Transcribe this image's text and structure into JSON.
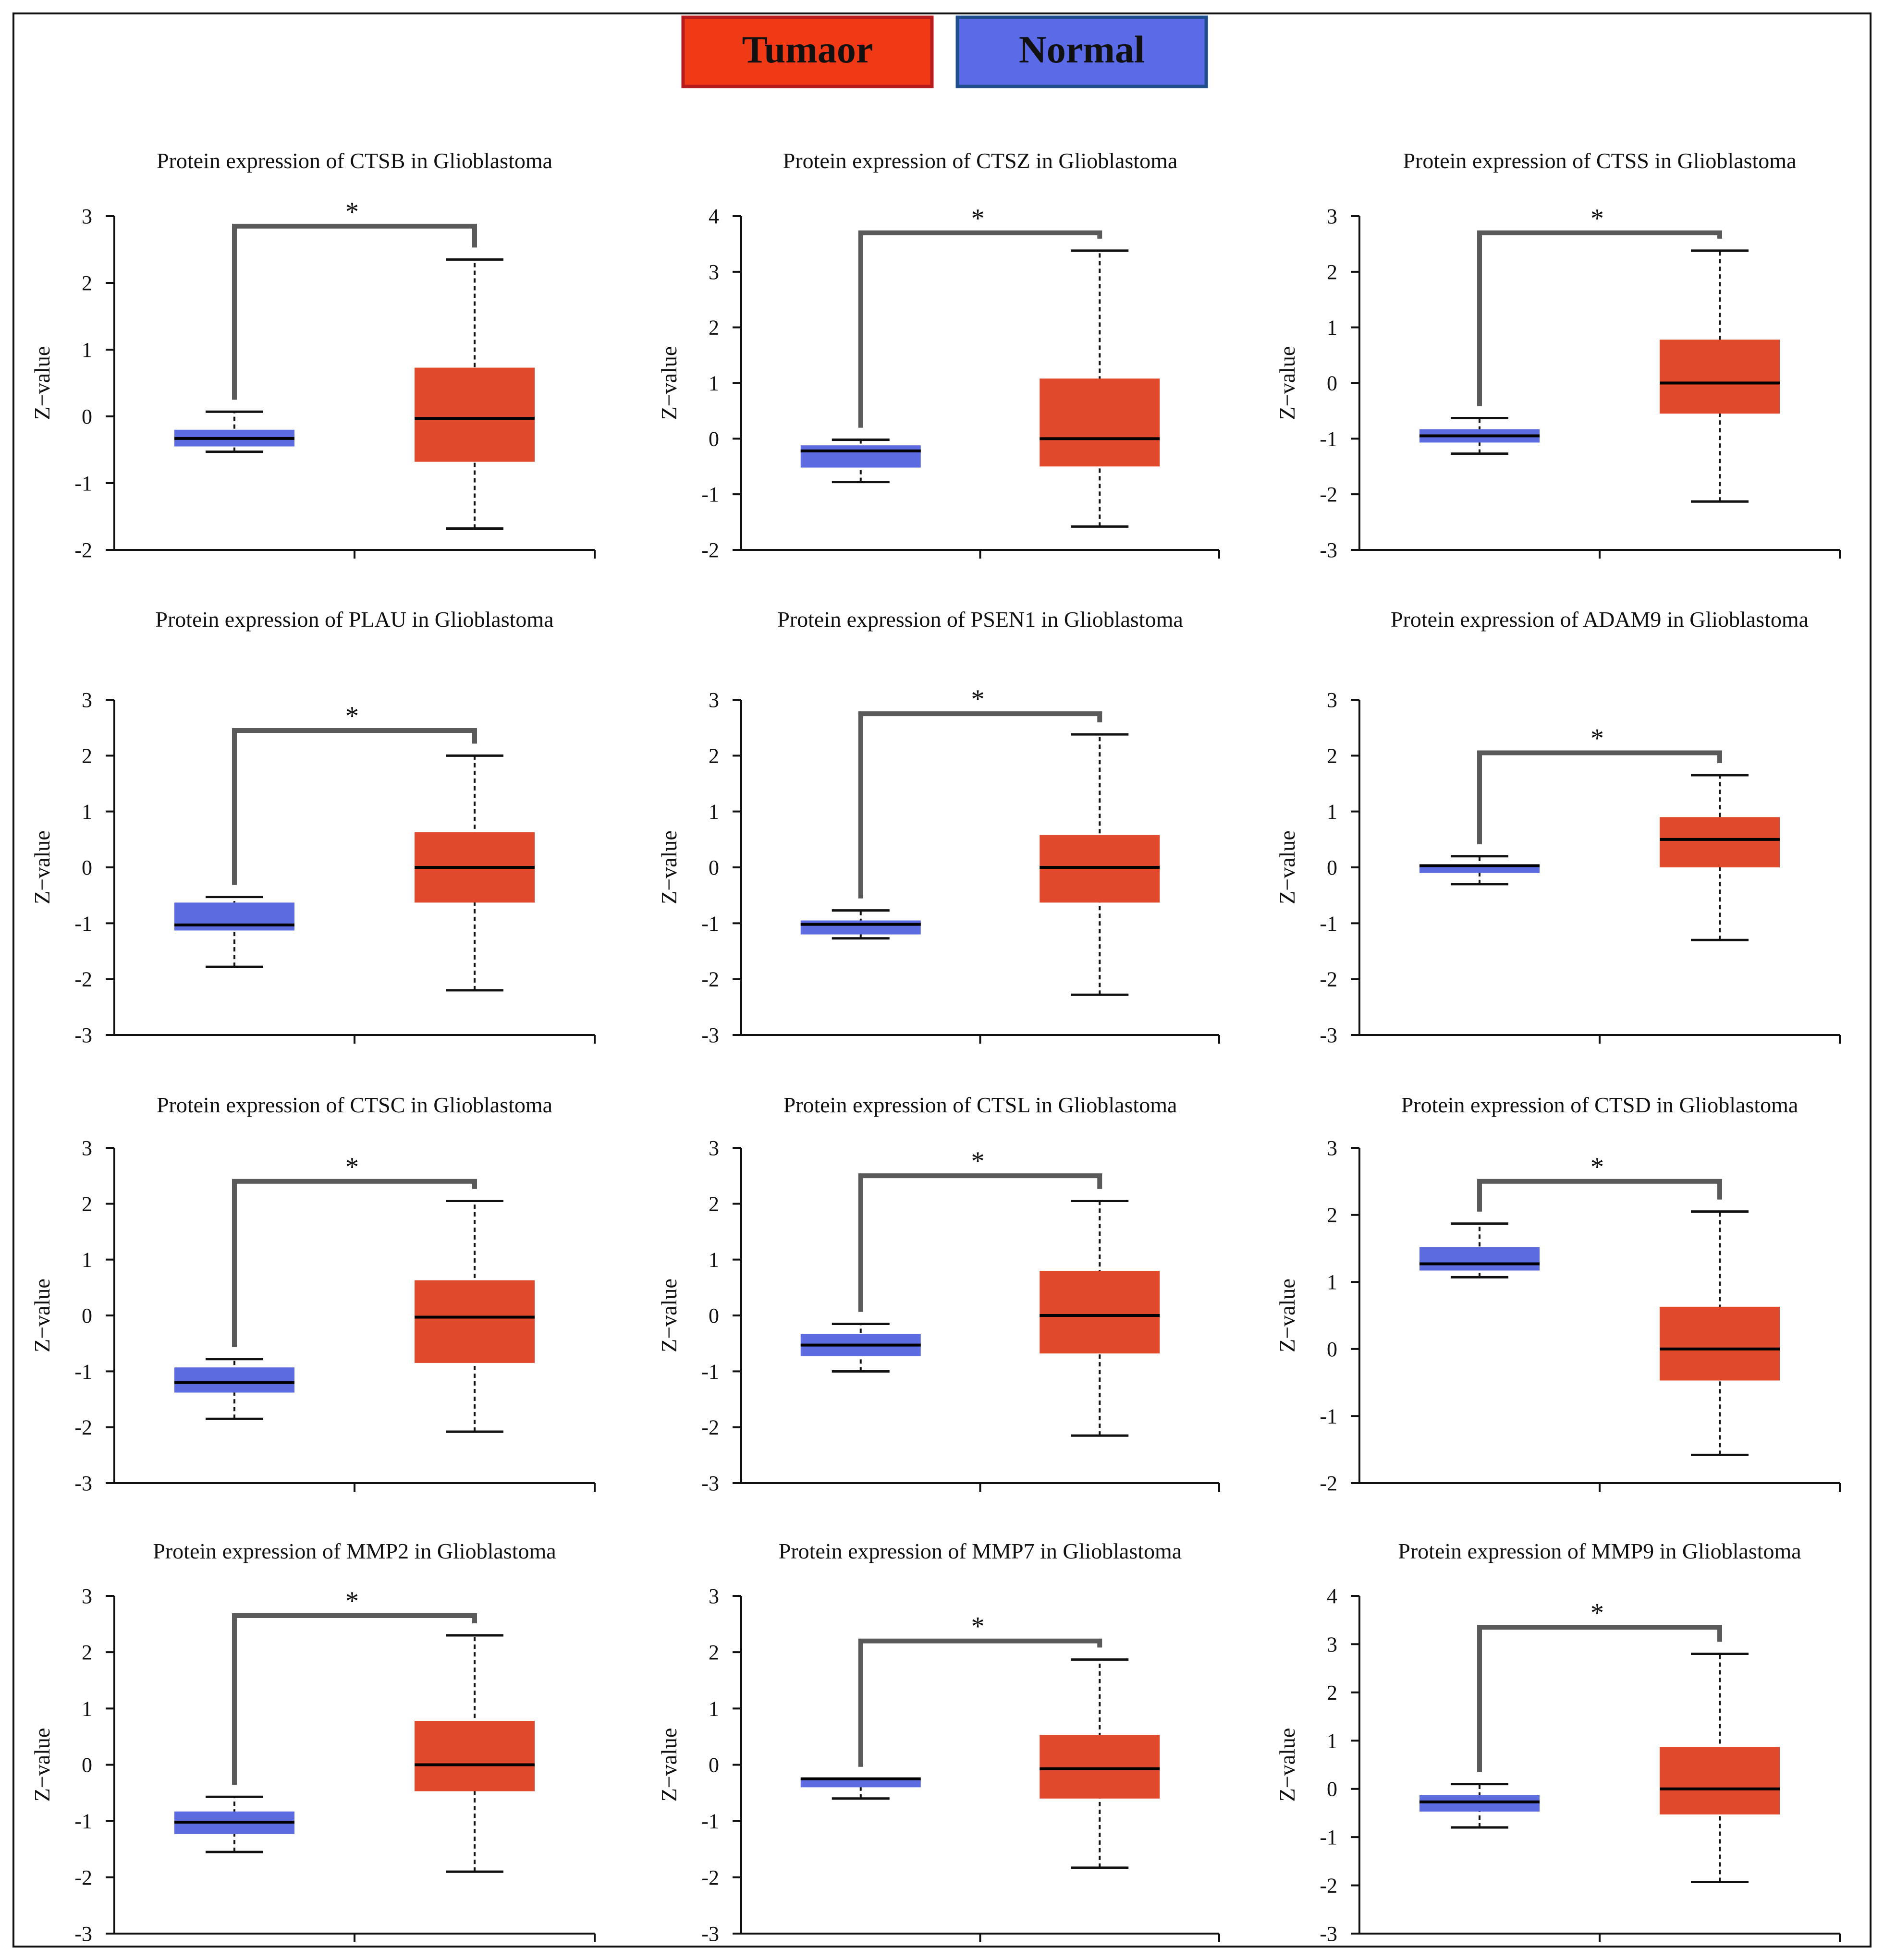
{
  "legend": {
    "items": [
      {
        "label": "Tumaor",
        "color": "#F03A16",
        "border": "#B71C1C"
      },
      {
        "label": "Normal",
        "color": "#5B6BE8",
        "border": "#1F4E8C"
      }
    ]
  },
  "colors": {
    "tumor": "#E0492B",
    "normal": "#5C6BE0",
    "bracket": "#5a5a5a",
    "axis": "#111111"
  },
  "chart_data": [
    {
      "type": "box",
      "title": "Protein expression of CTSB in Glioblastoma",
      "ylabel": "Z−value",
      "ylim": [
        -2,
        3
      ],
      "ticks": [
        -2,
        -1,
        0,
        1,
        2,
        3
      ],
      "significance": "*",
      "bracket_y": 2.85,
      "boxes": [
        {
          "group": "Normal",
          "whisker_low": -0.53,
          "q1": -0.45,
          "median": -0.33,
          "q3": -0.2,
          "whisker_high": 0.07
        },
        {
          "group": "Tumor",
          "whisker_low": -1.68,
          "q1": -0.68,
          "median": -0.03,
          "q3": 0.73,
          "whisker_high": 2.35
        }
      ]
    },
    {
      "type": "box",
      "title": "Protein expression of CTSZ in Glioblastoma",
      "ylabel": "Z−value",
      "ylim": [
        -2,
        4
      ],
      "ticks": [
        -2,
        -1,
        0,
        1,
        2,
        3,
        4
      ],
      "significance": "*",
      "bracket_y": 3.7,
      "boxes": [
        {
          "group": "Normal",
          "whisker_low": -0.78,
          "q1": -0.52,
          "median": -0.22,
          "q3": -0.12,
          "whisker_high": -0.02
        },
        {
          "group": "Tumor",
          "whisker_low": -1.58,
          "q1": -0.5,
          "median": 0.0,
          "q3": 1.08,
          "whisker_high": 3.38
        }
      ]
    },
    {
      "type": "box",
      "title": "Protein expression of CTSS in Glioblastoma",
      "ylabel": "Z−value",
      "ylim": [
        -3,
        3
      ],
      "ticks": [
        -3,
        -2,
        -1,
        0,
        1,
        2,
        3
      ],
      "significance": "*",
      "bracket_y": 2.7,
      "boxes": [
        {
          "group": "Normal",
          "whisker_low": -1.27,
          "q1": -1.07,
          "median": -0.95,
          "q3": -0.83,
          "whisker_high": -0.63
        },
        {
          "group": "Tumor",
          "whisker_low": -2.13,
          "q1": -0.55,
          "median": 0.0,
          "q3": 0.78,
          "whisker_high": 2.38
        }
      ]
    },
    {
      "type": "box",
      "title": "Protein expression of PLAU in Glioblastoma",
      "ylabel": "Z−value",
      "ylim": [
        -3,
        3
      ],
      "ticks": [
        -3,
        -2,
        -1,
        0,
        1,
        2,
        3
      ],
      "significance": "*",
      "bracket_y": 2.45,
      "boxes": [
        {
          "group": "Normal",
          "whisker_low": -1.78,
          "q1": -1.13,
          "median": -1.03,
          "q3": -0.63,
          "whisker_high": -0.53
        },
        {
          "group": "Tumor",
          "whisker_low": -2.2,
          "q1": -0.63,
          "median": 0.0,
          "q3": 0.63,
          "whisker_high": 2.0
        }
      ]
    },
    {
      "type": "box",
      "title": "Protein expression of PSEN1 in Glioblastoma",
      "ylabel": "Z−value",
      "ylim": [
        -3,
        3
      ],
      "ticks": [
        -3,
        -2,
        -1,
        0,
        1,
        2,
        3
      ],
      "significance": "*",
      "bracket_y": 2.75,
      "boxes": [
        {
          "group": "Normal",
          "whisker_low": -1.27,
          "q1": -1.2,
          "median": -1.02,
          "q3": -0.95,
          "whisker_high": -0.77
        },
        {
          "group": "Tumor",
          "whisker_low": -2.28,
          "q1": -0.63,
          "median": 0.0,
          "q3": 0.58,
          "whisker_high": 2.38
        }
      ]
    },
    {
      "type": "box",
      "title": "Protein expression of ADAM9 in Glioblastoma",
      "ylabel": "Z−value",
      "ylim": [
        -3,
        3
      ],
      "ticks": [
        -3,
        -2,
        -1,
        0,
        1,
        2,
        3
      ],
      "significance": "*",
      "bracket_y": 2.05,
      "boxes": [
        {
          "group": "Normal",
          "whisker_low": -0.3,
          "q1": -0.1,
          "median": 0.03,
          "q3": 0.05,
          "whisker_high": 0.2
        },
        {
          "group": "Tumor",
          "whisker_low": -1.3,
          "q1": 0.0,
          "median": 0.5,
          "q3": 0.9,
          "whisker_high": 1.65
        }
      ]
    },
    {
      "type": "box",
      "title": "Protein expression of CTSC in Glioblastoma",
      "ylabel": "Z−value",
      "ylim": [
        -3,
        3
      ],
      "ticks": [
        -3,
        -2,
        -1,
        0,
        1,
        2,
        3
      ],
      "significance": "*",
      "bracket_y": 2.4,
      "boxes": [
        {
          "group": "Normal",
          "whisker_low": -1.85,
          "q1": -1.38,
          "median": -1.2,
          "q3": -0.93,
          "whisker_high": -0.78
        },
        {
          "group": "Tumor",
          "whisker_low": -2.08,
          "q1": -0.85,
          "median": -0.03,
          "q3": 0.63,
          "whisker_high": 2.05
        }
      ]
    },
    {
      "type": "box",
      "title": "Protein expression of CTSL in Glioblastoma",
      "ylabel": "Z−value",
      "ylim": [
        -3,
        3
      ],
      "ticks": [
        -3,
        -2,
        -1,
        0,
        1,
        2,
        3
      ],
      "significance": "*",
      "bracket_y": 2.5,
      "boxes": [
        {
          "group": "Normal",
          "whisker_low": -1.0,
          "q1": -0.73,
          "median": -0.53,
          "q3": -0.33,
          "whisker_high": -0.15
        },
        {
          "group": "Tumor",
          "whisker_low": -2.15,
          "q1": -0.68,
          "median": 0.0,
          "q3": 0.8,
          "whisker_high": 2.05
        }
      ]
    },
    {
      "type": "box",
      "title": "Protein expression of CTSD in Glioblastoma",
      "ylabel": "Z−value",
      "ylim": [
        -2,
        3
      ],
      "ticks": [
        -2,
        -1,
        0,
        1,
        2,
        3
      ],
      "significance": "*",
      "bracket_y": 2.5,
      "boxes": [
        {
          "group": "Normal",
          "whisker_low": 1.07,
          "q1": 1.17,
          "median": 1.27,
          "q3": 1.52,
          "whisker_high": 1.87
        },
        {
          "group": "Tumor",
          "whisker_low": -1.58,
          "q1": -0.47,
          "median": 0.0,
          "q3": 0.63,
          "whisker_high": 2.05
        }
      ]
    },
    {
      "type": "box",
      "title": "Protein expression of MMP2 in Glioblastoma",
      "ylabel": "Z−value",
      "ylim": [
        -3,
        3
      ],
      "ticks": [
        -3,
        -2,
        -1,
        0,
        1,
        2,
        3
      ],
      "significance": "*",
      "bracket_y": 2.65,
      "boxes": [
        {
          "group": "Normal",
          "whisker_low": -1.55,
          "q1": -1.23,
          "median": -1.02,
          "q3": -0.83,
          "whisker_high": -0.57
        },
        {
          "group": "Tumor",
          "whisker_low": -1.9,
          "q1": -0.47,
          "median": 0.0,
          "q3": 0.78,
          "whisker_high": 2.3
        }
      ]
    },
    {
      "type": "box",
      "title": "Protein expression of MMP7 in Glioblastoma",
      "ylabel": "Z−value",
      "ylim": [
        -3,
        3
      ],
      "ticks": [
        -3,
        -2,
        -1,
        0,
        1,
        2,
        3
      ],
      "significance": "*",
      "bracket_y": 2.2,
      "boxes": [
        {
          "group": "Normal",
          "whisker_low": -0.6,
          "q1": -0.4,
          "median": -0.25,
          "q3": -0.25,
          "whisker_high": -0.25
        },
        {
          "group": "Tumor",
          "whisker_low": -1.83,
          "q1": -0.6,
          "median": -0.07,
          "q3": 0.53,
          "whisker_high": 1.87
        }
      ]
    },
    {
      "type": "box",
      "title": "Protein expression of MMP9 in Glioblastoma",
      "ylabel": "Z−value",
      "ylim": [
        -3,
        4
      ],
      "ticks": [
        -3,
        -2,
        -1,
        0,
        1,
        2,
        3,
        4
      ],
      "significance": "*",
      "bracket_y": 3.35,
      "boxes": [
        {
          "group": "Normal",
          "whisker_low": -0.8,
          "q1": -0.47,
          "median": -0.27,
          "q3": -0.13,
          "whisker_high": 0.1
        },
        {
          "group": "Tumor",
          "whisker_low": -1.93,
          "q1": -0.53,
          "median": 0.0,
          "q3": 0.87,
          "whisker_high": 2.8
        }
      ]
    }
  ]
}
